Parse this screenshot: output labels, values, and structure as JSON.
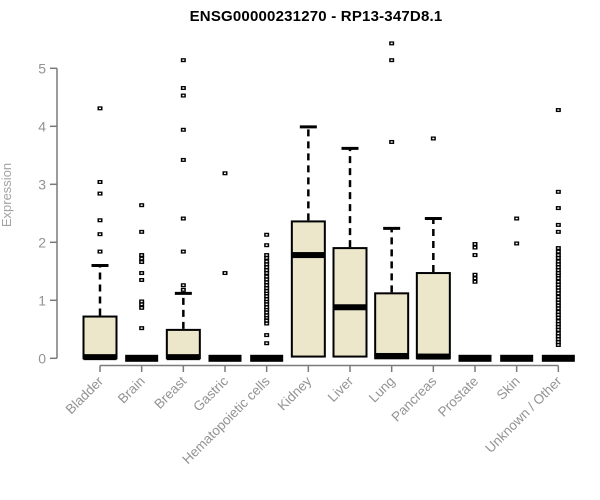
{
  "page": {
    "background": "#ffffff"
  },
  "chart_data": {
    "type": "boxplot",
    "title": "ENSG00000231270 - RP13-347D8.1",
    "ylabel": "Expression",
    "xlabel": "",
    "ylim": [
      0,
      5.5
    ],
    "yticks": [
      0,
      1,
      2,
      3,
      4,
      5
    ],
    "grid": false,
    "legend": null,
    "categories": [
      "Bladder",
      "Brain",
      "Breast",
      "Gastric",
      "Hematopoietic cells",
      "Kidney",
      "Liver",
      "Lung",
      "Pancreas",
      "Prostate",
      "Skin",
      "Unknown / Other"
    ],
    "boxes": [
      {
        "category": "Bladder",
        "q1": 0,
        "median": 0.02,
        "q3": 0.72,
        "whisker_low": 0,
        "whisker_high": 1.6,
        "outliers": [
          1.84,
          2.14,
          2.38,
          2.84,
          3.04,
          4.31
        ]
      },
      {
        "category": "Brain",
        "q1": 0,
        "median": 0,
        "q3": 0,
        "whisker_low": 0,
        "whisker_high": 0,
        "outliers": [
          0.52,
          0.87,
          0.93,
          0.98,
          1.35,
          1.47,
          1.66,
          1.72,
          1.78,
          2.18,
          2.64
        ]
      },
      {
        "category": "Breast",
        "q1": 0,
        "median": 0.02,
        "q3": 0.49,
        "whisker_low": 0,
        "whisker_high": 1.12,
        "outliers": [
          1.18,
          1.26,
          1.84,
          2.41,
          3.42,
          3.94,
          4.53,
          4.66,
          5.14
        ]
      },
      {
        "category": "Gastric",
        "q1": 0,
        "median": 0,
        "q3": 0,
        "whisker_low": 0,
        "whisker_high": 0,
        "outliers": [
          1.47,
          3.19
        ]
      },
      {
        "category": "Hematopoietic cells",
        "q1": 0,
        "median": 0,
        "q3": 0,
        "whisker_low": 0,
        "whisker_high": 0,
        "outliers": [
          0.26,
          0.4,
          0.6,
          0.65,
          0.7,
          0.74,
          0.79,
          0.84,
          0.88,
          0.93,
          0.98,
          1.02,
          1.07,
          1.12,
          1.16,
          1.21,
          1.26,
          1.31,
          1.36,
          1.41,
          1.47,
          1.52,
          1.57,
          1.62,
          1.67,
          1.73,
          1.78,
          1.95,
          2.13
        ]
      },
      {
        "category": "Kidney",
        "q1": 0.03,
        "median": 1.78,
        "q3": 2.36,
        "whisker_low": 0.03,
        "whisker_high": 3.99,
        "outliers": []
      },
      {
        "category": "Liver",
        "q1": 0.03,
        "median": 0.88,
        "q3": 1.9,
        "whisker_low": 0.03,
        "whisker_high": 3.62,
        "outliers": []
      },
      {
        "category": "Lung",
        "q1": 0,
        "median": 0.04,
        "q3": 1.12,
        "whisker_low": 0,
        "whisker_high": 2.24,
        "outliers": [
          3.73,
          5.14,
          5.43
        ]
      },
      {
        "category": "Pancreas",
        "q1": 0,
        "median": 0.03,
        "q3": 1.47,
        "whisker_low": 0,
        "whisker_high": 2.41,
        "outliers": [
          3.79
        ]
      },
      {
        "category": "Prostate",
        "q1": 0,
        "median": 0,
        "q3": 0,
        "whisker_low": 0,
        "whisker_high": 0,
        "outliers": [
          1.32,
          1.38,
          1.44,
          1.78,
          1.91,
          1.97
        ]
      },
      {
        "category": "Skin",
        "q1": 0,
        "median": 0,
        "q3": 0,
        "whisker_low": 0,
        "whisker_high": 0,
        "outliers": [
          1.98,
          2.41
        ]
      },
      {
        "category": "Unknown / Other",
        "q1": 0,
        "median": 0,
        "q3": 0,
        "whisker_low": 0,
        "whisker_high": 0,
        "outliers": [
          0.23,
          0.28,
          0.33,
          0.38,
          0.43,
          0.49,
          0.54,
          0.59,
          0.64,
          0.7,
          0.75,
          0.8,
          0.86,
          0.91,
          0.96,
          1.01,
          1.06,
          1.12,
          1.17,
          1.22,
          1.27,
          1.32,
          1.38,
          1.43,
          1.47,
          1.52,
          1.57,
          1.62,
          1.67,
          1.73,
          1.78,
          1.84,
          1.9,
          2.18,
          2.3,
          2.59,
          2.87,
          4.28
        ]
      }
    ],
    "colors": {
      "box_fill": "#ece7ca",
      "box_border": "#000000",
      "median": "#000000",
      "whisker": "#000000",
      "outlier": "#000000",
      "axis_line": "#7a7a7a",
      "tick_label": "#939393",
      "axis_label": "#a3a3a3",
      "title": "#000000"
    }
  }
}
